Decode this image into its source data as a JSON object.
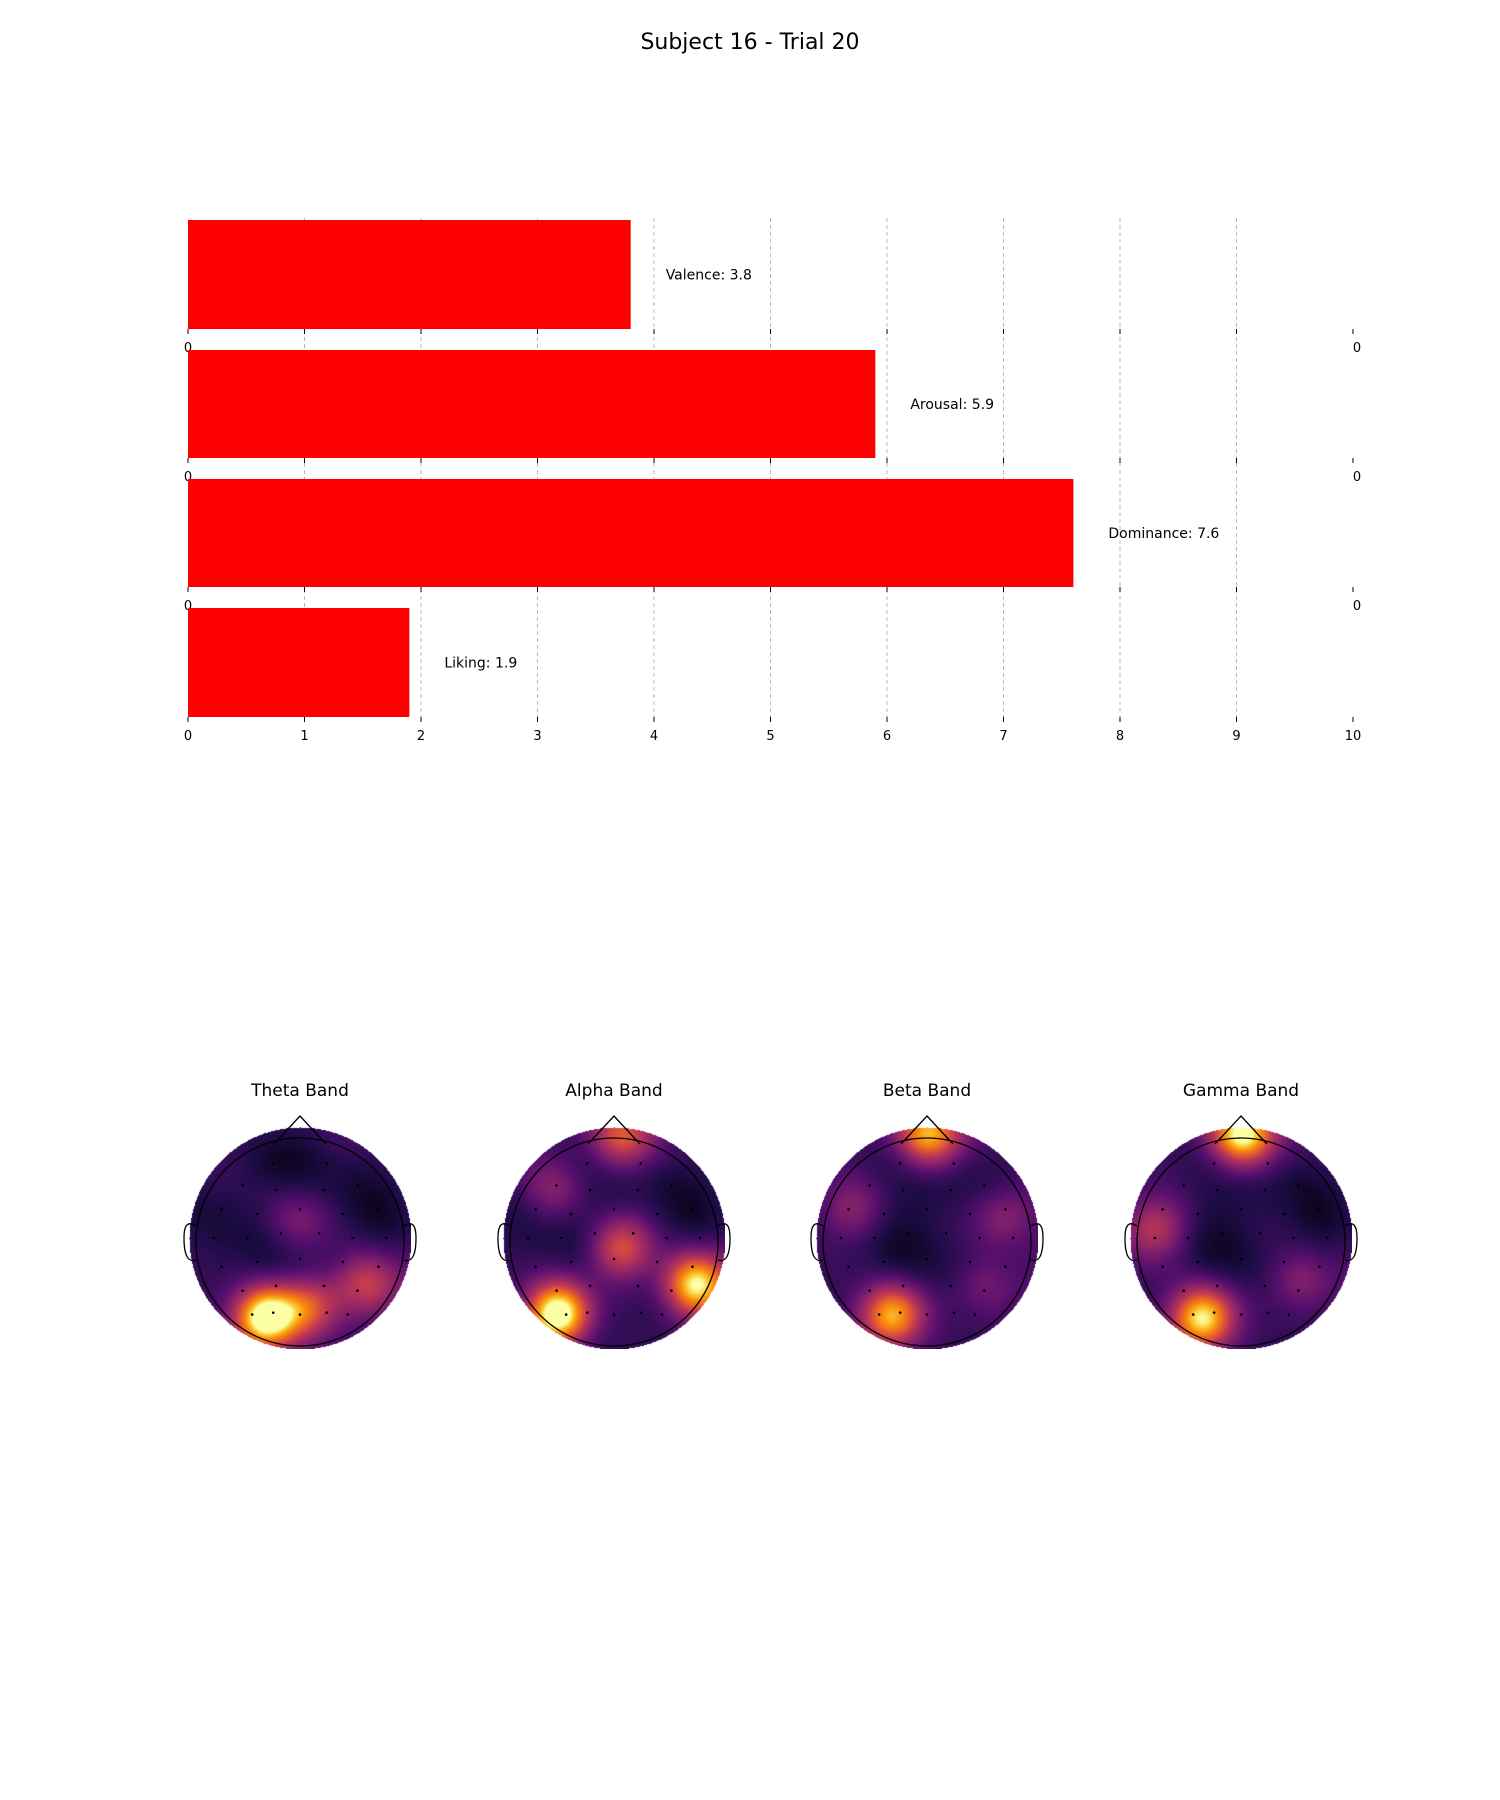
{
  "title": "Subject 16 - Trial 20",
  "chart_data": [
    {
      "type": "bar",
      "orientation": "horizontal",
      "bars": [
        {
          "label": "Valence: 3.8",
          "value": 3.8
        },
        {
          "label": "Arousal: 5.9",
          "value": 5.9
        },
        {
          "label": "Dominance: 7.6",
          "value": 7.6
        },
        {
          "label": "Liking: 1.9",
          "value": 1.9
        }
      ],
      "xlim": [
        0,
        10
      ],
      "xticks": [
        "0",
        "1",
        "2",
        "3",
        "4",
        "5",
        "6",
        "7",
        "8",
        "9",
        "10"
      ],
      "bar_color": "#ff0000",
      "grid": "vertical dashed"
    },
    {
      "type": "heatmap",
      "subtype": "topographic-scalp-map",
      "colormap": "inferno",
      "maps": [
        {
          "title": "Theta Band",
          "hotspots": [
            {
              "x": -0.32,
              "y": -0.72,
              "v": 1.0
            },
            {
              "x": 0.08,
              "y": -0.62,
              "v": 0.45
            },
            {
              "x": 0.6,
              "y": -0.42,
              "v": 0.55
            },
            {
              "x": -0.05,
              "y": 0.15,
              "v": 0.25
            }
          ]
        },
        {
          "title": "Alpha Band",
          "hotspots": [
            {
              "x": -0.5,
              "y": -0.68,
              "v": 1.0
            },
            {
              "x": 0.72,
              "y": -0.42,
              "v": 0.9
            },
            {
              "x": 0.05,
              "y": -0.1,
              "v": 0.55
            },
            {
              "x": 0.05,
              "y": 0.9,
              "v": 0.55
            },
            {
              "x": -0.55,
              "y": 0.45,
              "v": 0.25
            }
          ]
        },
        {
          "title": "Beta Band",
          "hotspots": [
            {
              "x": -0.32,
              "y": -0.7,
              "v": 0.8
            },
            {
              "x": 0.0,
              "y": 0.92,
              "v": 0.75
            },
            {
              "x": 0.7,
              "y": 0.2,
              "v": 0.35
            },
            {
              "x": -0.7,
              "y": 0.25,
              "v": 0.3
            },
            {
              "x": 0.55,
              "y": -0.45,
              "v": 0.3
            }
          ]
        },
        {
          "title": "Gamma Band",
          "hotspots": [
            {
              "x": -0.35,
              "y": -0.72,
              "v": 0.9
            },
            {
              "x": 0.0,
              "y": 0.92,
              "v": 0.9
            },
            {
              "x": -0.78,
              "y": 0.1,
              "v": 0.45
            },
            {
              "x": 0.55,
              "y": -0.4,
              "v": 0.35
            }
          ]
        }
      ]
    }
  ]
}
